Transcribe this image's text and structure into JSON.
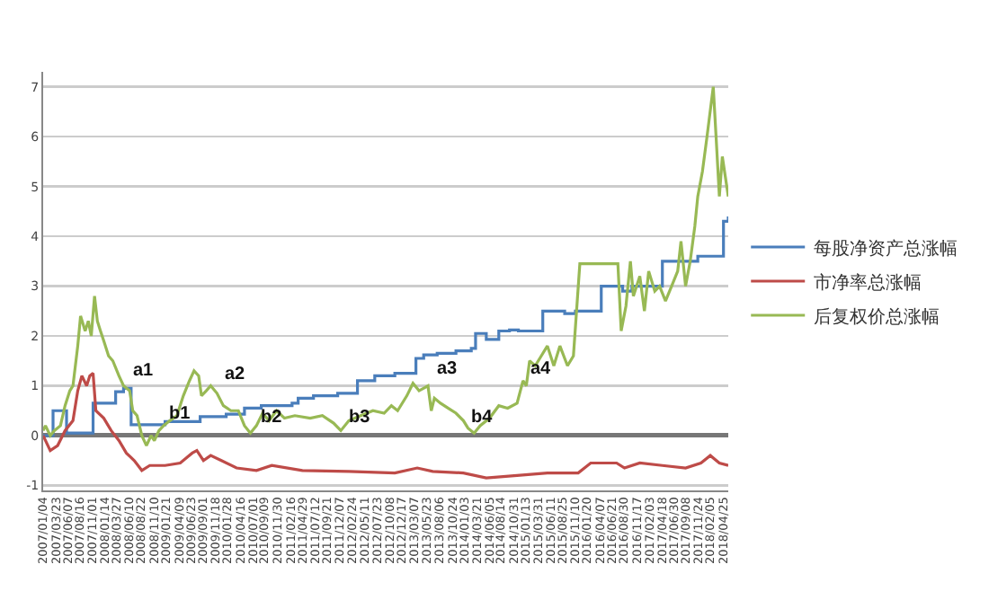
{
  "chart_data": {
    "type": "line",
    "grid": "y",
    "legend": "right",
    "marker": "none",
    "line_style": "solid",
    "ylim": [
      -1.1,
      7.3
    ],
    "yticks": [
      -1,
      0,
      1,
      2,
      3,
      4,
      5,
      6,
      7
    ],
    "xlim": [
      "2007-01-04",
      "2018-05-25"
    ],
    "xticks": [
      {
        "value": "2007-01-04",
        "label": "2007/01/04"
      },
      {
        "value": "2007-03-23",
        "label": "2007/03/23"
      },
      {
        "value": "2007-06-07",
        "label": "2007/06/07"
      },
      {
        "value": "2007-08-16",
        "label": "2007/08/16"
      },
      {
        "value": "2007-11-01",
        "label": "2007/11/01"
      },
      {
        "value": "2008-01-14",
        "label": "2008/01/14"
      },
      {
        "value": "2008-03-27",
        "label": "2008/03/27"
      },
      {
        "value": "2008-06-10",
        "label": "2008/06/10"
      },
      {
        "value": "2008-08-22",
        "label": "2008/08/22"
      },
      {
        "value": "2008-11-10",
        "label": "2008/11/10"
      },
      {
        "value": "2009-01-21",
        "label": "2009/01/21"
      },
      {
        "value": "2009-04-09",
        "label": "2009/04/09"
      },
      {
        "value": "2009-06-23",
        "label": "2009/06/23"
      },
      {
        "value": "2009-09-01",
        "label": "2009/09/01"
      },
      {
        "value": "2009-11-18",
        "label": "2009/11/18"
      },
      {
        "value": "2010-01-28",
        "label": "2010/01/28"
      },
      {
        "value": "2010-04-16",
        "label": "2010/04/16"
      },
      {
        "value": "2010-07-01",
        "label": "2010/07/01"
      },
      {
        "value": "2010-09-09",
        "label": "2010/09/09"
      },
      {
        "value": "2010-11-30",
        "label": "2010/11/30"
      },
      {
        "value": "2011-02-16",
        "label": "2011/02/16"
      },
      {
        "value": "2011-04-29",
        "label": "2011/04/29"
      },
      {
        "value": "2011-07-12",
        "label": "2011/07/12"
      },
      {
        "value": "2011-09-21",
        "label": "2011/09/21"
      },
      {
        "value": "2011-12-07",
        "label": "2011/12/07"
      },
      {
        "value": "2012-02-24",
        "label": "2012/02/24"
      },
      {
        "value": "2012-05-11",
        "label": "2012/05/11"
      },
      {
        "value": "2012-07-23",
        "label": "2012/07/23"
      },
      {
        "value": "2012-10-08",
        "label": "2012/10/08"
      },
      {
        "value": "2012-12-17",
        "label": "2012/12/17"
      },
      {
        "value": "2013-03-07",
        "label": "2013/03/07"
      },
      {
        "value": "2013-05-23",
        "label": "2013/05/23"
      },
      {
        "value": "2013-08-06",
        "label": "2013/08/06"
      },
      {
        "value": "2013-10-24",
        "label": "2013/10/24"
      },
      {
        "value": "2014-01-03",
        "label": "2014/01/03"
      },
      {
        "value": "2014-03-21",
        "label": "2014/03/21"
      },
      {
        "value": "2014-06-05",
        "label": "2014/06/05"
      },
      {
        "value": "2014-08-14",
        "label": "2014/08/14"
      },
      {
        "value": "2014-10-31",
        "label": "2014/10/31"
      },
      {
        "value": "2015-01-13",
        "label": "2015/01/13"
      },
      {
        "value": "2015-03-31",
        "label": "2015/03/31"
      },
      {
        "value": "2015-06-11",
        "label": "2015/06/11"
      },
      {
        "value": "2015-08-25",
        "label": "2015/08/25"
      },
      {
        "value": "2015-11-10",
        "label": "2015/11/10"
      },
      {
        "value": "2016-01-20",
        "label": "2016/01/20"
      },
      {
        "value": "2016-04-07",
        "label": "2016/04/07"
      },
      {
        "value": "2016-06-21",
        "label": "2016/06/21"
      },
      {
        "value": "2016-08-30",
        "label": "2016/08/30"
      },
      {
        "value": "2016-11-17",
        "label": "2016/11/17"
      },
      {
        "value": "2017-02-03",
        "label": "2017/02/03"
      },
      {
        "value": "2017-04-18",
        "label": "2017/04/18"
      },
      {
        "value": "2017-06-30",
        "label": "2017/06/30"
      },
      {
        "value": "2017-09-08",
        "label": "2017/09/08"
      },
      {
        "value": "2017-11-24",
        "label": "2017/11/24"
      },
      {
        "value": "2018-02-05",
        "label": "2018/02/05"
      },
      {
        "value": "2018-04-25",
        "label": "2018/04/25"
      }
    ],
    "series": [
      {
        "name": "每股净资产总涨幅",
        "type": "step",
        "color": "#4a7ebb",
        "x": [
          "2007-01-04",
          "2007-03-05",
          "2007-05-26",
          "2007-11-03",
          "2008-03-19",
          "2008-05-06",
          "2008-06-21",
          "2009-01-13",
          "2009-08-14",
          "2010-01-19",
          "2010-05-10",
          "2010-08-20",
          "2011-02-23",
          "2011-04-01",
          "2011-07-03",
          "2011-11-27",
          "2012-03-26",
          "2012-07-09",
          "2012-11-08",
          "2013-03-16",
          "2013-05-02",
          "2013-07-23",
          "2013-11-14",
          "2014-02-15",
          "2014-03-13",
          "2014-05-17",
          "2014-08-01",
          "2014-10-05",
          "2014-11-28",
          "2015-04-25",
          "2015-09-05",
          "2015-11-09",
          "2016-04-14",
          "2016-08-22",
          "2016-10-17",
          "2017-04-20",
          "2017-11-21",
          "2018-04-26",
          "2018-05-25"
        ],
        "values": [
          0,
          0.5,
          0.05,
          0.65,
          0.88,
          0.95,
          0.22,
          0.28,
          0.38,
          0.43,
          0.55,
          0.6,
          0.65,
          0.75,
          0.8,
          0.85,
          1.1,
          1.2,
          1.25,
          1.55,
          1.62,
          1.65,
          1.7,
          1.75,
          2.05,
          1.93,
          2.1,
          2.12,
          2.1,
          2.5,
          2.45,
          2.5,
          3.0,
          2.9,
          3.0,
          3.5,
          3.6,
          4.3,
          4.4
        ]
      },
      {
        "name": "市净率总涨幅",
        "type": "line",
        "color": "#be4b48",
        "x": [
          "2007-01-04",
          "2007-02-16",
          "2007-04-02",
          "2007-05-17",
          "2007-07-04",
          "2007-08-02",
          "2007-08-27",
          "2007-09-25",
          "2007-10-14",
          "2007-11-03",
          "2007-11-20",
          "2008-01-07",
          "2008-02-21",
          "2008-04-08",
          "2008-05-23",
          "2008-07-10",
          "2008-08-25",
          "2008-10-12",
          "2009-01-13",
          "2009-04-15",
          "2009-06-27",
          "2009-07-25",
          "2009-09-03",
          "2009-10-17",
          "2009-12-21",
          "2010-03-23",
          "2010-07-22",
          "2010-10-23",
          "2011-04-27",
          "2012-02-03",
          "2012-11-08",
          "2013-03-24",
          "2013-06-26",
          "2013-12-29",
          "2014-05-17",
          "2014-11-20",
          "2015-05-23",
          "2015-11-26",
          "2016-02-10",
          "2016-07-16",
          "2016-09-02",
          "2016-12-04",
          "2017-04-20",
          "2017-09-08",
          "2017-12-10",
          "2018-02-05",
          "2018-04-01",
          "2018-05-25"
        ],
        "values": [
          0,
          -0.3,
          -0.2,
          0.1,
          0.3,
          0.9,
          1.2,
          1.0,
          1.2,
          1.25,
          0.5,
          0.35,
          0.1,
          -0.1,
          -0.35,
          -0.5,
          -0.7,
          -0.6,
          -0.6,
          -0.55,
          -0.35,
          -0.3,
          -0.5,
          -0.4,
          -0.5,
          -0.65,
          -0.7,
          -0.6,
          -0.7,
          -0.72,
          -0.75,
          -0.65,
          -0.72,
          -0.75,
          -0.85,
          -0.8,
          -0.75,
          -0.75,
          -0.55,
          -0.55,
          -0.65,
          -0.55,
          -0.6,
          -0.65,
          -0.55,
          -0.4,
          -0.55,
          -0.6
        ]
      },
      {
        "name": "后复权价总涨幅",
        "type": "line",
        "color": "#98b954",
        "x": [
          "2007-01-04",
          "2007-01-18",
          "2007-02-16",
          "2007-03-13",
          "2007-04-19",
          "2007-05-17",
          "2007-06-15",
          "2007-07-04",
          "2007-08-02",
          "2007-08-19",
          "2007-09-16",
          "2007-10-05",
          "2007-10-23",
          "2007-11-12",
          "2007-11-29",
          "2007-12-18",
          "2008-01-07",
          "2008-02-05",
          "2008-03-02",
          "2008-04-08",
          "2008-05-06",
          "2008-06-12",
          "2008-07-01",
          "2008-07-27",
          "2008-08-25",
          "2008-09-22",
          "2008-10-20",
          "2008-11-09",
          "2008-12-07",
          "2009-01-04",
          "2009-02-11",
          "2009-03-26",
          "2009-05-04",
          "2009-06-10",
          "2009-07-08",
          "2009-08-05",
          "2009-08-22",
          "2009-09-20",
          "2009-10-17",
          "2009-11-24",
          "2010-01-02",
          "2010-02-17",
          "2010-04-03",
          "2010-05-10",
          "2010-06-15",
          "2010-07-22",
          "2010-08-28",
          "2010-10-06",
          "2010-11-21",
          "2011-01-08",
          "2011-03-12",
          "2011-06-13",
          "2011-08-26",
          "2011-11-02",
          "2011-12-16",
          "2012-02-03",
          "2012-04-15",
          "2012-06-28",
          "2012-09-04",
          "2012-10-18",
          "2012-11-25",
          "2013-01-20",
          "2013-02-26",
          "2013-04-04",
          "2013-05-28",
          "2013-06-17",
          "2013-07-06",
          "2013-08-12",
          "2013-09-27",
          "2013-11-14",
          "2013-12-29",
          "2014-01-26",
          "2014-03-04",
          "2014-04-10",
          "2014-06-06",
          "2014-08-01",
          "2014-09-24",
          "2014-11-20",
          "2014-12-26",
          "2015-01-15",
          "2015-02-04",
          "2015-03-10",
          "2015-04-16",
          "2015-05-23",
          "2015-07-01",
          "2015-08-07",
          "2015-09-22",
          "2015-10-28",
          "2015-12-06",
          "2016-07-24",
          "2016-08-13",
          "2016-09-11",
          "2016-10-08",
          "2016-10-26",
          "2016-12-04",
          "2017-01-01",
          "2017-01-27",
          "2017-03-05",
          "2017-04-03",
          "2017-05-09",
          "2017-06-15",
          "2017-07-22",
          "2017-08-11",
          "2017-09-08",
          "2017-10-06",
          "2017-11-03",
          "2017-11-21",
          "2017-12-19",
          "2018-01-16",
          "2018-02-23",
          "2018-03-12",
          "2018-04-01",
          "2018-04-19",
          "2018-05-07",
          "2018-05-25"
        ],
        "values": [
          0.1,
          0.2,
          0.0,
          0.1,
          0.2,
          0.6,
          0.9,
          1.0,
          1.8,
          2.4,
          2.1,
          2.3,
          2.0,
          2.8,
          2.3,
          2.1,
          1.9,
          1.6,
          1.5,
          1.2,
          1.0,
          0.9,
          0.5,
          0.4,
          0.0,
          -0.2,
          0.0,
          -0.1,
          0.1,
          0.2,
          0.3,
          0.4,
          0.8,
          1.1,
          1.3,
          1.2,
          0.8,
          0.9,
          1.0,
          0.85,
          0.6,
          0.5,
          0.5,
          0.2,
          0.05,
          0.2,
          0.45,
          0.3,
          0.5,
          0.35,
          0.4,
          0.35,
          0.4,
          0.25,
          0.1,
          0.3,
          0.4,
          0.5,
          0.45,
          0.6,
          0.5,
          0.8,
          1.05,
          0.9,
          1.0,
          0.5,
          0.75,
          0.65,
          0.55,
          0.45,
          0.3,
          0.15,
          0.05,
          0.2,
          0.35,
          0.6,
          0.55,
          0.65,
          1.1,
          1.0,
          1.5,
          1.4,
          1.6,
          1.8,
          1.4,
          1.8,
          1.4,
          1.6,
          3.45,
          3.45,
          2.1,
          2.6,
          3.5,
          2.8,
          3.2,
          2.5,
          3.3,
          2.9,
          3.0,
          2.7,
          3.0,
          3.3,
          3.9,
          3.0,
          3.5,
          4.2,
          4.8,
          5.3,
          6.0,
          7.0,
          6.0,
          4.8,
          5.6,
          5.2,
          4.8
        ]
      }
    ],
    "annotations": [
      {
        "text": "a1",
        "x": "2008-06-12",
        "y": 0.95
      },
      {
        "text": "a2",
        "x": "2009-12-21",
        "y": 0.9
      },
      {
        "text": "a3",
        "x": "2013-06-26",
        "y": 1.0
      },
      {
        "text": "a4",
        "x": "2015-01-15",
        "y": 1.0
      },
      {
        "text": "b1",
        "x": "2009-01-13",
        "y": 0.1
      },
      {
        "text": "b2",
        "x": "2010-07-22",
        "y": 0
      },
      {
        "text": "b3",
        "x": "2012-01-10",
        "y": 0
      },
      {
        "text": "b4",
        "x": "2014-01-26",
        "y": 0
      }
    ]
  }
}
